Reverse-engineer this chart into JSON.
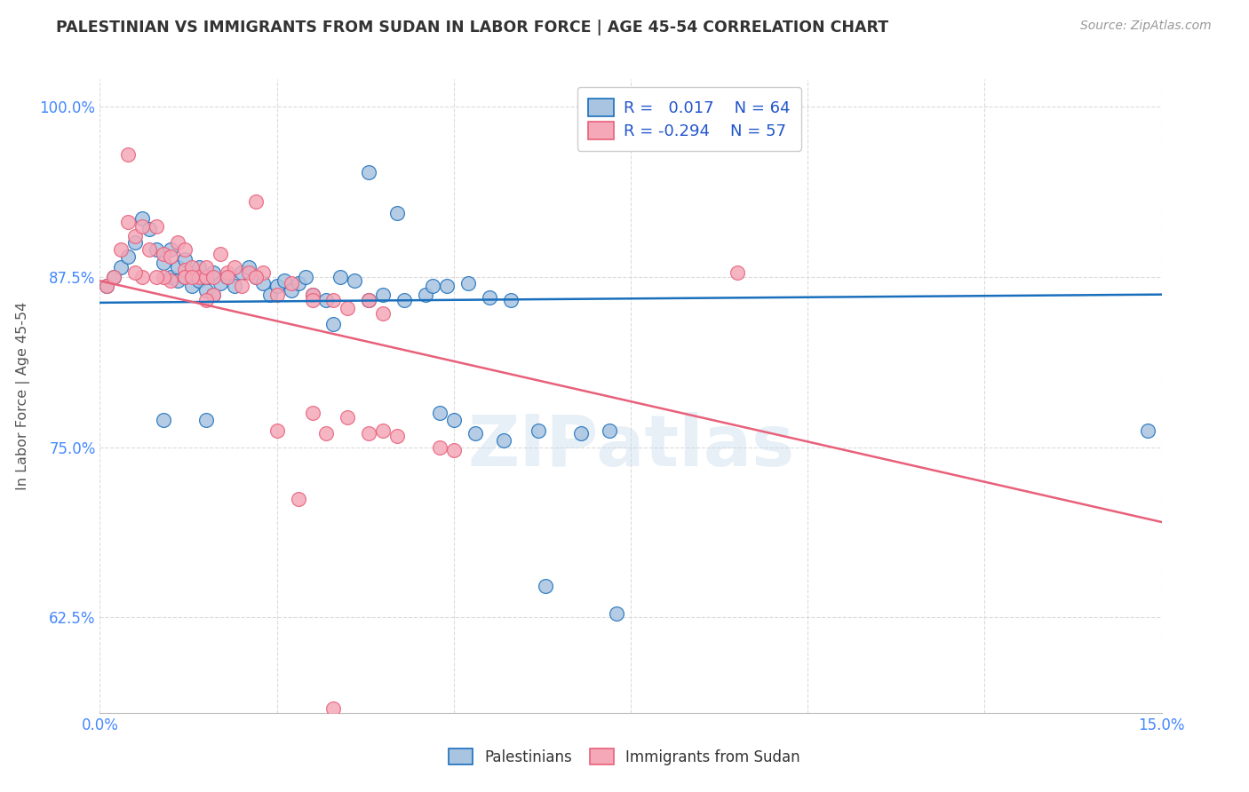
{
  "title": "PALESTINIAN VS IMMIGRANTS FROM SUDAN IN LABOR FORCE | AGE 45-54 CORRELATION CHART",
  "source": "Source: ZipAtlas.com",
  "ylabel": "In Labor Force | Age 45-54",
  "xlim": [
    0.0,
    0.15
  ],
  "ylim": [
    0.555,
    1.02
  ],
  "xticks": [
    0.0,
    0.025,
    0.05,
    0.075,
    0.1,
    0.125,
    0.15
  ],
  "xticklabels": [
    "0.0%",
    "",
    "",
    "",
    "",
    "",
    "15.0%"
  ],
  "yticks": [
    0.625,
    0.75,
    0.875,
    1.0
  ],
  "yticklabels": [
    "62.5%",
    "75.0%",
    "87.5%",
    "100.0%"
  ],
  "blue_R": 0.017,
  "blue_N": 64,
  "pink_R": -0.294,
  "pink_N": 57,
  "blue_color": "#a8c4e0",
  "pink_color": "#f4a8b8",
  "blue_line_color": "#1a6fbd",
  "pink_line_color": "#e8607a",
  "blue_trend": [
    0.856,
    0.862
  ],
  "pink_trend": [
    0.872,
    0.695
  ],
  "blue_x": [
    0.001,
    0.002,
    0.003,
    0.004,
    0.005,
    0.006,
    0.007,
    0.008,
    0.009,
    0.01,
    0.01,
    0.011,
    0.011,
    0.012,
    0.012,
    0.013,
    0.013,
    0.014,
    0.014,
    0.015,
    0.015,
    0.016,
    0.016,
    0.017,
    0.018,
    0.019,
    0.02,
    0.021,
    0.022,
    0.023,
    0.024,
    0.025,
    0.026,
    0.027,
    0.028,
    0.029,
    0.03,
    0.032,
    0.034,
    0.036,
    0.038,
    0.04,
    0.043,
    0.046,
    0.049,
    0.052,
    0.055,
    0.058,
    0.062,
    0.068,
    0.048,
    0.05,
    0.053,
    0.057,
    0.063,
    0.072,
    0.033,
    0.038,
    0.042,
    0.047,
    0.015,
    0.009,
    0.148,
    0.073
  ],
  "blue_y": [
    0.868,
    0.875,
    0.882,
    0.89,
    0.9,
    0.918,
    0.91,
    0.895,
    0.885,
    0.875,
    0.895,
    0.882,
    0.872,
    0.875,
    0.888,
    0.868,
    0.878,
    0.872,
    0.882,
    0.865,
    0.875,
    0.862,
    0.878,
    0.87,
    0.875,
    0.868,
    0.878,
    0.882,
    0.875,
    0.87,
    0.862,
    0.868,
    0.872,
    0.865,
    0.87,
    0.875,
    0.862,
    0.858,
    0.875,
    0.872,
    0.858,
    0.862,
    0.858,
    0.862,
    0.868,
    0.87,
    0.86,
    0.858,
    0.762,
    0.76,
    0.775,
    0.77,
    0.76,
    0.755,
    0.648,
    0.762,
    0.84,
    0.952,
    0.922,
    0.868,
    0.77,
    0.77,
    0.762,
    0.628
  ],
  "pink_x": [
    0.001,
    0.002,
    0.003,
    0.004,
    0.005,
    0.006,
    0.007,
    0.008,
    0.009,
    0.01,
    0.01,
    0.011,
    0.012,
    0.012,
    0.013,
    0.014,
    0.015,
    0.015,
    0.016,
    0.016,
    0.017,
    0.018,
    0.019,
    0.02,
    0.021,
    0.022,
    0.023,
    0.025,
    0.027,
    0.03,
    0.033,
    0.035,
    0.038,
    0.04,
    0.03,
    0.022,
    0.015,
    0.012,
    0.009,
    0.006,
    0.004,
    0.008,
    0.013,
    0.018,
    0.005,
    0.09,
    0.03,
    0.035,
    0.04,
    0.025,
    0.028,
    0.032,
    0.038,
    0.042,
    0.048,
    0.05,
    0.033
  ],
  "pink_y": [
    0.868,
    0.875,
    0.895,
    0.915,
    0.905,
    0.912,
    0.895,
    0.912,
    0.892,
    0.872,
    0.89,
    0.9,
    0.88,
    0.895,
    0.882,
    0.875,
    0.875,
    0.882,
    0.875,
    0.862,
    0.892,
    0.878,
    0.882,
    0.868,
    0.878,
    0.93,
    0.878,
    0.862,
    0.87,
    0.862,
    0.858,
    0.852,
    0.858,
    0.848,
    0.858,
    0.875,
    0.858,
    0.875,
    0.875,
    0.875,
    0.965,
    0.875,
    0.875,
    0.875,
    0.878,
    0.878,
    0.775,
    0.772,
    0.762,
    0.762,
    0.712,
    0.76,
    0.76,
    0.758,
    0.75,
    0.748,
    0.558
  ]
}
